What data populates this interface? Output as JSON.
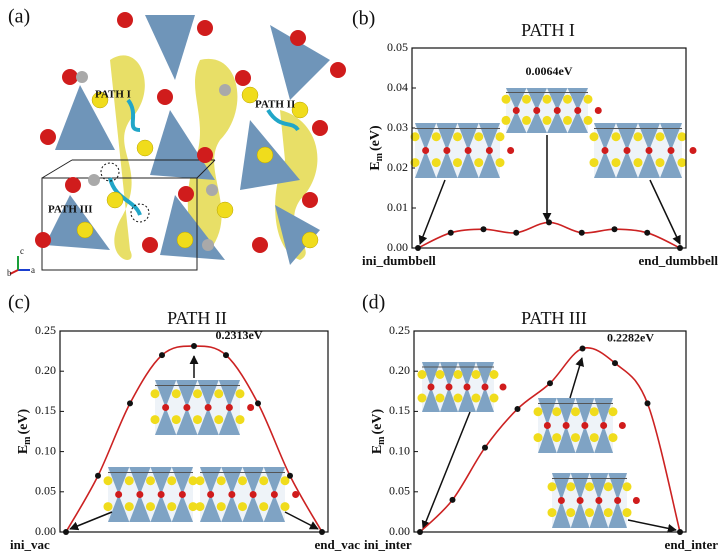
{
  "structure_panel": {
    "panel_label": "(a)",
    "path_labels": [
      "PATH I",
      "PATH II",
      "PATH III"
    ],
    "axis_labels": [
      "b",
      "c",
      "a"
    ]
  },
  "chart_data": [
    {
      "type": "line",
      "panel_label": "(b)",
      "title": "PATH I",
      "y_label": {
        "main": "E",
        "sub": "m",
        "unit": "(eV)"
      },
      "categories": [
        "ini_dumbbell",
        null,
        null,
        null,
        null,
        null,
        null,
        null,
        "end_dumbbell"
      ],
      "values": [
        0,
        0.0038,
        0.0047,
        0.0038,
        0.0064,
        0.0038,
        0.0047,
        0.0038,
        0
      ],
      "value_labels": [
        null,
        null,
        null,
        null,
        "0.0064eV",
        null,
        null,
        null,
        null
      ],
      "color": "#cc2222",
      "marker_color": "#111111",
      "ylim": [
        0,
        0.05
      ],
      "yticks": [
        {
          "value": 0,
          "label": "0.00"
        },
        0.01,
        0.02,
        0.03,
        0.04,
        0.05
      ]
    },
    {
      "type": "line",
      "panel_label": "(c)",
      "title": "PATH II",
      "y_label": {
        "main": "E",
        "sub": "m",
        "unit": "(eV)"
      },
      "categories": [
        "ini_vac",
        null,
        null,
        null,
        null,
        null,
        null,
        null,
        "end_vac"
      ],
      "values": [
        0,
        0.07,
        0.16,
        0.22,
        0.2313,
        0.22,
        0.16,
        0.07,
        0
      ],
      "value_labels": [
        null,
        null,
        null,
        null,
        "0.2313eV",
        null,
        null,
        null,
        null
      ],
      "color": "#cc2222",
      "marker_color": "#111111",
      "ylim": [
        0,
        0.25
      ],
      "yticks": [
        {
          "value": 0,
          "label": "0.00"
        },
        0.05,
        {
          "value": 0.1,
          "label": "0.10"
        },
        0.15,
        {
          "value": 0.2,
          "label": "0.20"
        },
        0.25
      ]
    },
    {
      "type": "line",
      "panel_label": "(d)",
      "title": "PATH III",
      "y_label": {
        "main": "E",
        "sub": "m",
        "unit": "(eV)"
      },
      "categories": [
        "ini_inter",
        null,
        null,
        null,
        null,
        null,
        null,
        null,
        "end_inter"
      ],
      "values": [
        0,
        0.04,
        0.105,
        0.153,
        0.185,
        0.2282,
        0.21,
        0.16,
        0
      ],
      "value_labels": [
        null,
        null,
        null,
        null,
        null,
        "0.2282eV",
        null,
        null,
        null
      ],
      "color": "#cc2222",
      "marker_color": "#111111",
      "ylim": [
        0,
        0.25
      ],
      "yticks": [
        {
          "value": 0,
          "label": "0.00"
        },
        0.05,
        {
          "value": 0.1,
          "label": "0.10"
        },
        0.15,
        {
          "value": 0.2,
          "label": "0.20"
        },
        0.25
      ]
    }
  ]
}
